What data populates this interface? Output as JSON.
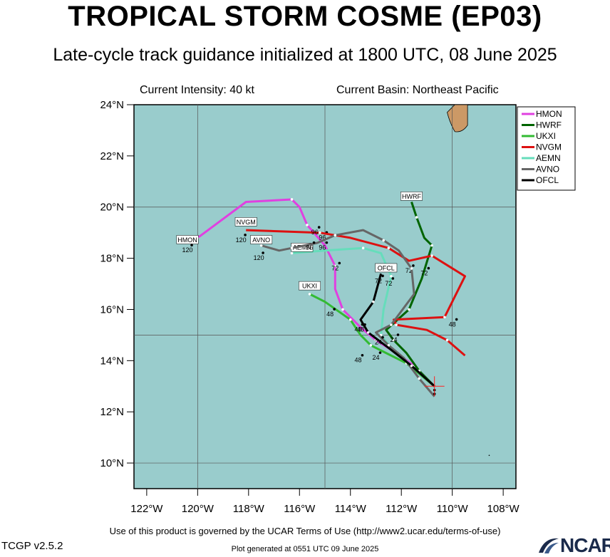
{
  "header": {
    "title": "TROPICAL STORM COSME (EP03)",
    "subtitle": "Late-cycle track guidance initialized at 1800 UTC, 08 June 2025",
    "intensity": "Current Intensity: 40 kt",
    "basin": "Current Basin: Northeast Pacific"
  },
  "footer": {
    "terms": "Use of this product is governed by the UCAR Terms of Use (http://www2.ucar.edu/terms-of-use)",
    "version": "TCGP v2.5.2",
    "generated": "Plot generated at 0551 UTC   09 June 2025",
    "logo": "NCAR"
  },
  "colors": {
    "ocean": "#99cccc",
    "land": "#cc9966",
    "grid": "#555555",
    "current_position": "#ff2222"
  },
  "chart_data": {
    "type": "map",
    "xlim": [
      -122.5,
      -107.5
    ],
    "ylim": [
      9,
      24
    ],
    "x_ticks": [
      {
        "v": -122,
        "label": "122°W"
      },
      {
        "v": -120,
        "label": "120°W"
      },
      {
        "v": -118,
        "label": "118°W"
      },
      {
        "v": -116,
        "label": "116°W"
      },
      {
        "v": -114,
        "label": "114°W"
      },
      {
        "v": -112,
        "label": "112°W"
      },
      {
        "v": -110,
        "label": "110°W"
      },
      {
        "v": -108,
        "label": "108°W"
      }
    ],
    "y_ticks": [
      {
        "v": 24,
        "label": "24°N"
      },
      {
        "v": 22,
        "label": "22°N"
      },
      {
        "v": 20,
        "label": "20°N"
      },
      {
        "v": 18,
        "label": "18°N"
      },
      {
        "v": 16,
        "label": "16°N"
      },
      {
        "v": 14,
        "label": "14°N"
      },
      {
        "v": 12,
        "label": "12°N"
      },
      {
        "v": 10,
        "label": "10°N"
      }
    ],
    "grid_lines": {
      "lon": [
        -120,
        -115,
        -110
      ],
      "lat": [
        20,
        15,
        10
      ]
    },
    "current_position": {
      "lon": -110.7,
      "lat": 13.0
    },
    "legend": [
      "HMON",
      "HWRF",
      "UKXI",
      "NVGM",
      "AEMN",
      "AVNO",
      "OFCL"
    ],
    "series": [
      {
        "name": "HMON",
        "color": "#e040e0",
        "points": [
          [
            -110.7,
            13.0
          ],
          [
            -111.5,
            13.8
          ],
          [
            -112.2,
            14.3
          ],
          [
            -113.0,
            14.8
          ],
          [
            -113.6,
            15.3
          ],
          [
            -114.3,
            16.0
          ],
          [
            -114.6,
            16.8
          ],
          [
            -114.6,
            17.7
          ],
          [
            -115.0,
            18.5
          ],
          [
            -115.7,
            19.3
          ],
          [
            -116.0,
            20.0
          ],
          [
            -116.3,
            20.3
          ],
          [
            -118.1,
            20.2
          ],
          [
            -120.0,
            18.8
          ]
        ],
        "labels": [
          {
            "lon": -113.6,
            "lat": 15.3,
            "t": "48"
          },
          {
            "lon": -114.6,
            "lat": 17.7,
            "t": "72"
          },
          {
            "lon": -115.1,
            "lat": 18.9,
            "t": "96"
          },
          {
            "lon": -120.4,
            "lat": 18.4,
            "t": "120"
          }
        ],
        "endbox": {
          "text": "HMON",
          "lon": -120.4,
          "lat": 18.7
        }
      },
      {
        "name": "HWRF",
        "color": "#006400",
        "points": [
          [
            -110.7,
            13.0
          ],
          [
            -111.3,
            13.6
          ],
          [
            -111.8,
            14.3
          ],
          [
            -112.3,
            14.8
          ],
          [
            -112.6,
            15.2
          ],
          [
            -111.7,
            16.0
          ],
          [
            -111.2,
            17.2
          ],
          [
            -110.8,
            18.5
          ],
          [
            -111.1,
            18.8
          ],
          [
            -111.4,
            19.6
          ],
          [
            -111.6,
            20.2
          ]
        ],
        "labels": [
          {
            "lon": -111.1,
            "lat": 17.5,
            "t": "72"
          }
        ],
        "endbox": {
          "text": "HWRF",
          "lon": -111.6,
          "lat": 20.4
        }
      },
      {
        "name": "UKXI",
        "color": "#33bb33",
        "points": [
          [
            -110.7,
            13.0
          ],
          [
            -111.8,
            13.9
          ],
          [
            -112.6,
            14.3
          ],
          [
            -113.2,
            14.6
          ],
          [
            -113.6,
            15.0
          ],
          [
            -114.0,
            15.6
          ],
          [
            -115.0,
            16.3
          ],
          [
            -115.6,
            16.6
          ]
        ],
        "labels": [
          {
            "lon": -114.8,
            "lat": 15.9,
            "t": "48"
          },
          {
            "lon": -113.0,
            "lat": 14.2,
            "t": "24"
          },
          {
            "lon": -113.7,
            "lat": 14.1,
            "t": "48"
          }
        ],
        "endbox": {
          "text": "UKXI",
          "lon": -115.6,
          "lat": 16.9
        }
      },
      {
        "name": "NVGM",
        "color": "#dd1111",
        "points": [
          [
            -109.5,
            14.2
          ],
          [
            -110.2,
            14.8
          ],
          [
            -111.0,
            15.2
          ],
          [
            -112.2,
            15.4
          ],
          [
            -112.3,
            15.6
          ],
          [
            -110.3,
            15.7
          ],
          [
            -109.5,
            17.3
          ],
          [
            -110.8,
            18.1
          ],
          [
            -111.7,
            17.9
          ],
          [
            -112.5,
            18.4
          ],
          [
            -114.0,
            18.8
          ],
          [
            -115.2,
            19.0
          ],
          [
            -118.1,
            19.1
          ]
        ],
        "labels": [
          {
            "lon": -110.0,
            "lat": 15.5,
            "t": "48"
          },
          {
            "lon": -111.7,
            "lat": 17.6,
            "t": "72"
          },
          {
            "lon": -115.4,
            "lat": 19.1,
            "t": "96"
          },
          {
            "lon": -118.3,
            "lat": 18.8,
            "t": "120"
          }
        ],
        "endbox": {
          "text": "NVGM",
          "lon": -118.1,
          "lat": 19.4
        }
      },
      {
        "name": "AEMN",
        "color": "#66ddbb",
        "points": [
          [
            -110.7,
            13.0
          ],
          [
            -111.6,
            13.8
          ],
          [
            -112.4,
            14.5
          ],
          [
            -112.8,
            15.0
          ],
          [
            -112.7,
            16.0
          ],
          [
            -112.4,
            17.3
          ],
          [
            -112.8,
            18.2
          ],
          [
            -113.5,
            18.4
          ],
          [
            -115.0,
            18.3
          ],
          [
            -116.3,
            18.2
          ]
        ],
        "labels": [
          {
            "lon": -112.5,
            "lat": 17.1,
            "t": "72"
          },
          {
            "lon": -115.1,
            "lat": 18.5,
            "t": "96"
          }
        ],
        "endbox": {
          "text": "AEMN",
          "lon": -115.9,
          "lat": 18.4
        }
      },
      {
        "name": "AVNO",
        "color": "#666666",
        "points": [
          [
            -110.7,
            12.6
          ],
          [
            -111.3,
            13.3
          ],
          [
            -111.9,
            14.1
          ],
          [
            -112.5,
            14.6
          ],
          [
            -113.0,
            15.1
          ],
          [
            -112.4,
            15.4
          ],
          [
            -111.5,
            16.6
          ],
          [
            -111.6,
            17.6
          ],
          [
            -112.1,
            18.3
          ],
          [
            -112.7,
            18.7
          ],
          [
            -113.5,
            19.1
          ],
          [
            -114.6,
            18.9
          ],
          [
            -115.3,
            18.6
          ],
          [
            -116.3,
            18.4
          ],
          [
            -116.8,
            18.3
          ],
          [
            -117.5,
            18.5
          ]
        ],
        "labels": [
          {
            "lon": -112.9,
            "lat": 14.8,
            "t": "24"
          },
          {
            "lon": -115.6,
            "lat": 18.5,
            "t": "96"
          },
          {
            "lon": -117.6,
            "lat": 18.1,
            "t": "120"
          }
        ],
        "endbox": {
          "text": "AVNO",
          "lon": -117.5,
          "lat": 18.7
        }
      },
      {
        "name": "OFCL",
        "color": "#000000",
        "points": [
          [
            -110.7,
            13.0
          ],
          [
            -111.6,
            13.8
          ],
          [
            -112.5,
            14.5
          ],
          [
            -113.3,
            15.1
          ],
          [
            -113.6,
            15.6
          ],
          [
            -113.1,
            16.3
          ],
          [
            -112.8,
            17.4
          ]
        ],
        "labels": [
          {
            "lon": -113.7,
            "lat": 15.3,
            "t": "48"
          },
          {
            "lon": -112.3,
            "lat": 14.9,
            "t": "24"
          },
          {
            "lon": -112.9,
            "lat": 17.2,
            "t": "72"
          }
        ],
        "endbox": {
          "text": "OFCL",
          "lon": -112.6,
          "lat": 17.6
        }
      }
    ]
  }
}
